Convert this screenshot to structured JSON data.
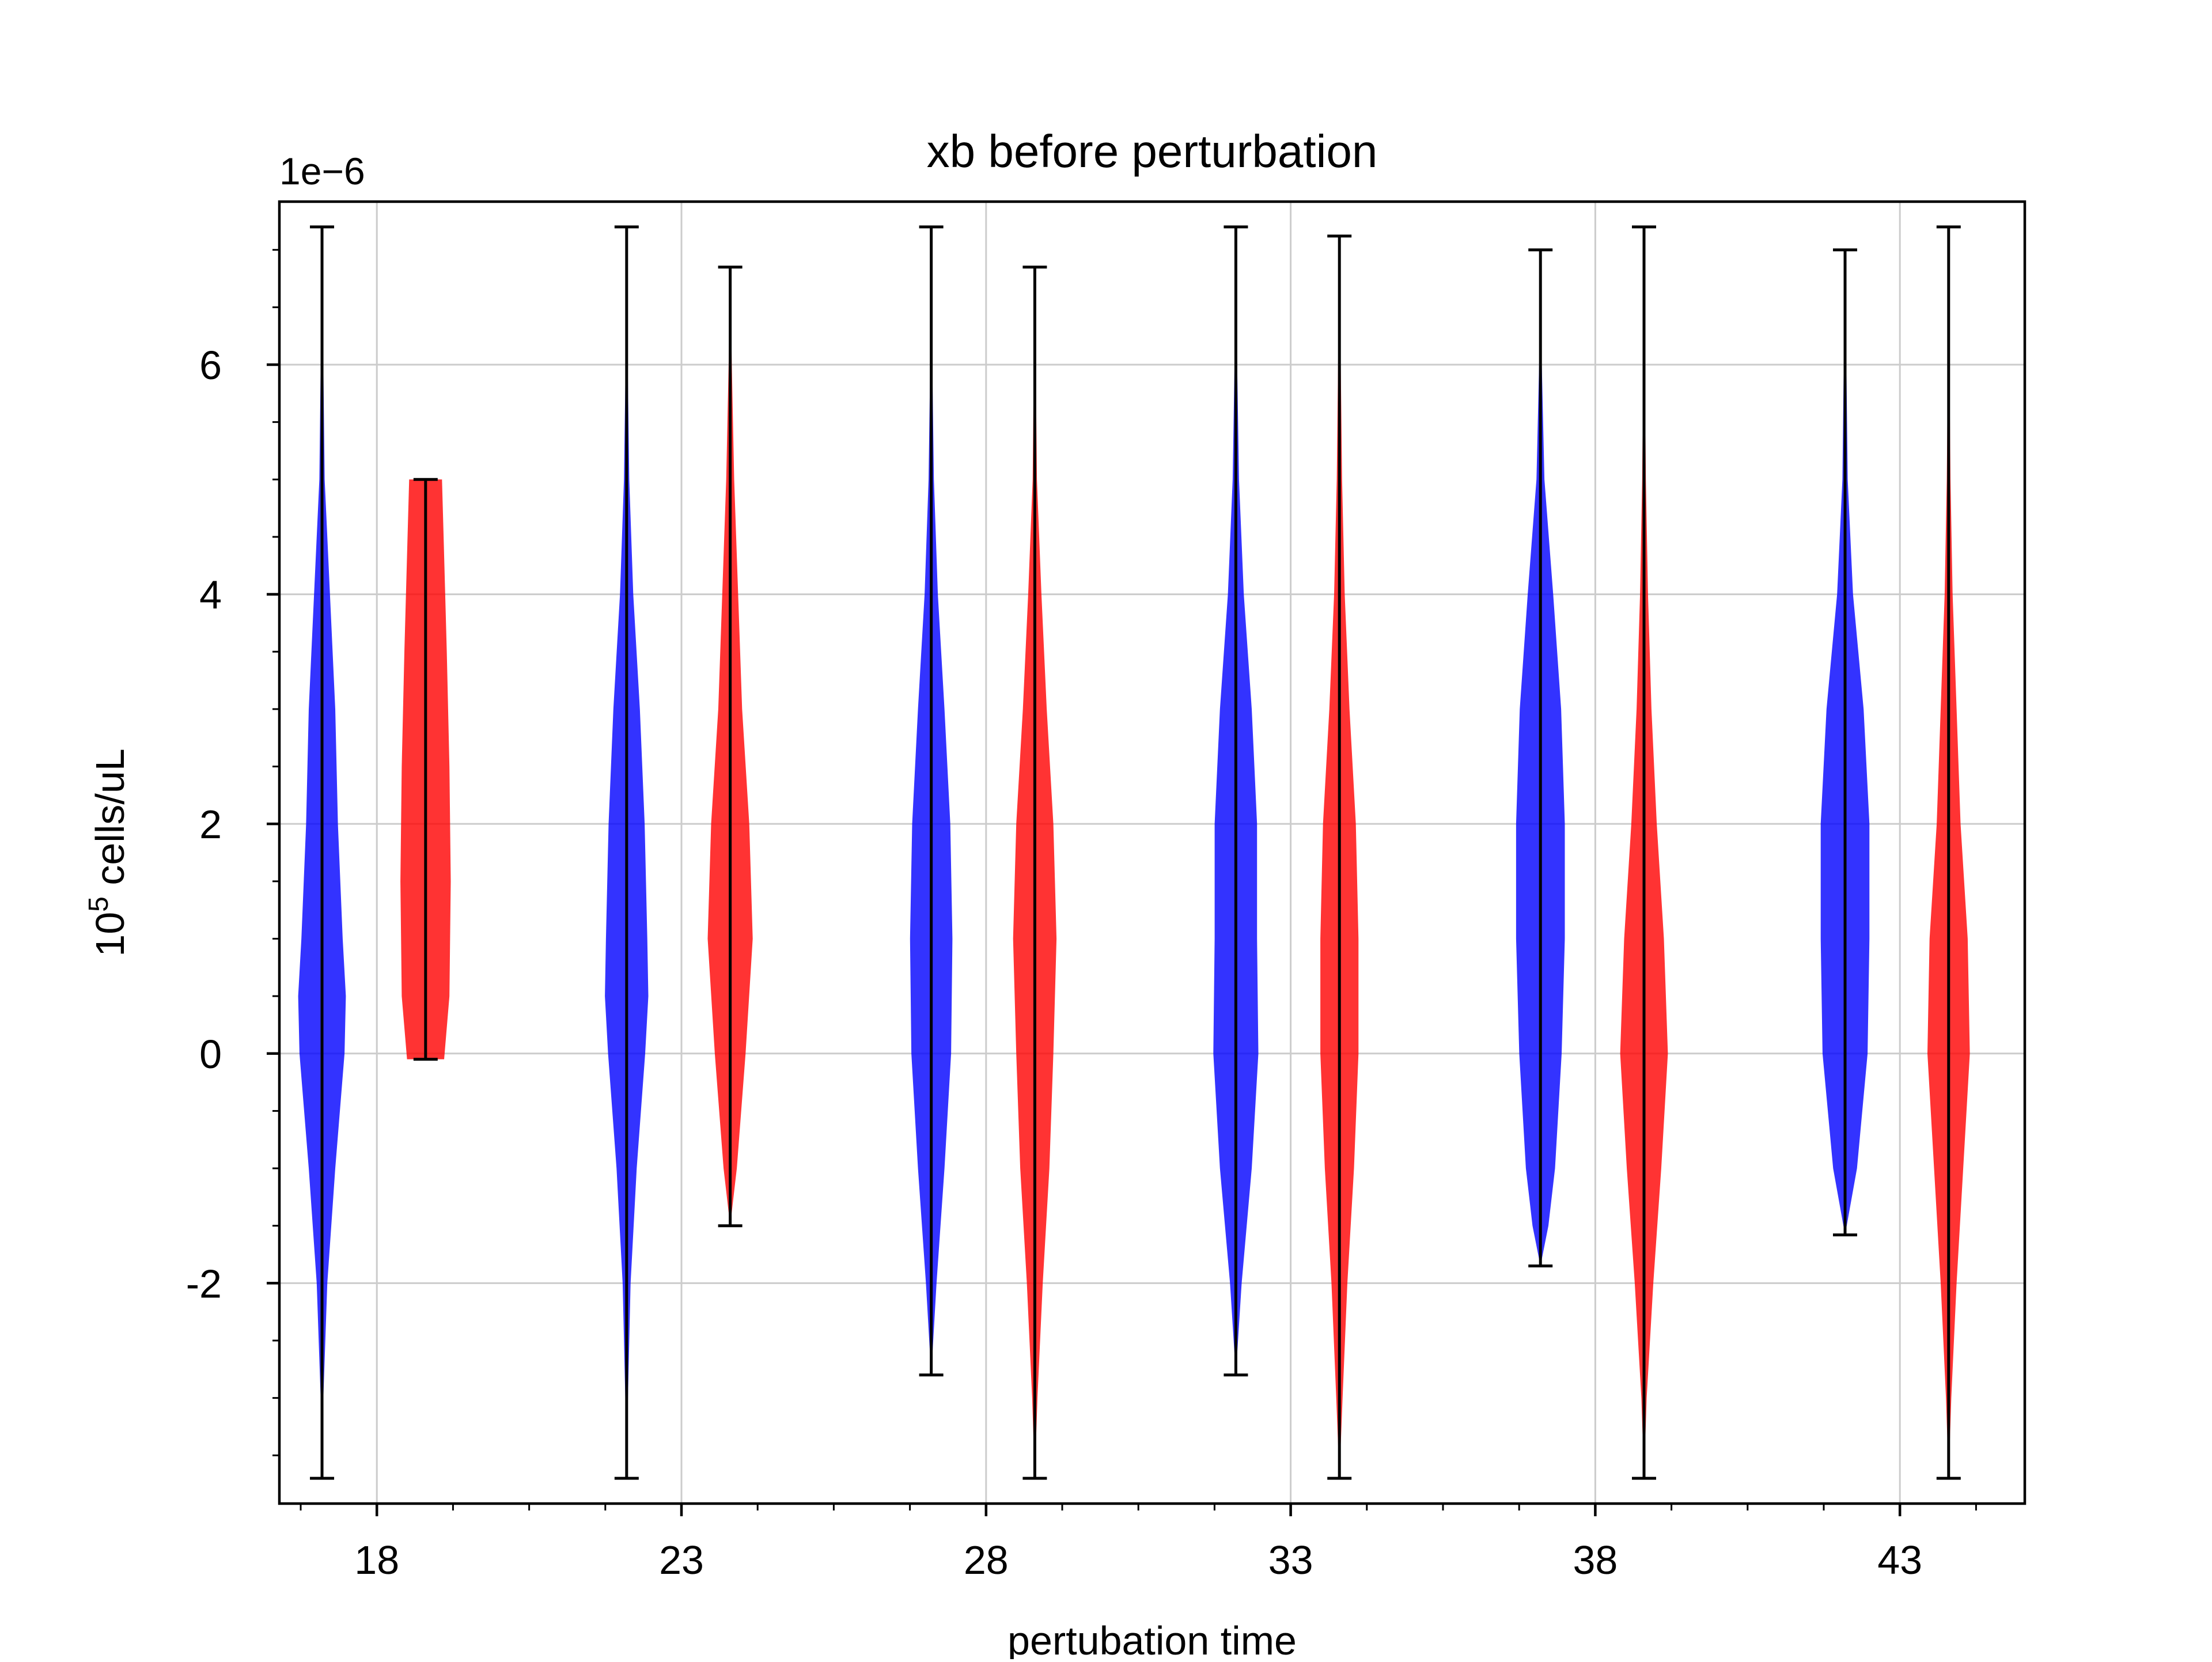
{
  "chart_data": {
    "type": "violin",
    "title": "xb before perturbation",
    "xlabel": "pertubation time",
    "ylabel_base": "10",
    "ylabel_exp": "5",
    "ylabel_rest": " cells/uL",
    "y_offset_text": "1e−6",
    "xlim": [
      16.4,
      45.05
    ],
    "ylim": [
      -3.92,
      7.42
    ],
    "y_ticks": [
      -2,
      0,
      2,
      4,
      6
    ],
    "y_tick_labels": [
      "-2",
      "0",
      "2",
      "4",
      "6"
    ],
    "y_minor_step": 0.5,
    "x_ticks": [
      18,
      23,
      28,
      33,
      38,
      43
    ],
    "x_tick_labels": [
      "18",
      "23",
      "28",
      "33",
      "38",
      "43"
    ],
    "x_minor_step": 1.25,
    "grid": true,
    "legend": "none",
    "colors": {
      "blue": "#0000ff",
      "red": "#ff0000",
      "bar": "#000000"
    },
    "series": [
      {
        "color": "blue",
        "x": [
          17.1,
          22.1,
          27.1,
          32.1,
          37.1,
          42.1
        ],
        "min": [
          -3.7,
          -3.7,
          -2.8,
          -2.8,
          -1.85,
          -1.58
        ],
        "max": [
          7.2,
          7.2,
          7.2,
          7.2,
          7.0,
          7.0
        ],
        "density": [
          [
            [
              -3.7,
              0
            ],
            [
              -3.0,
              0.05
            ],
            [
              -2.0,
              0.2
            ],
            [
              -1.0,
              0.5
            ],
            [
              0.0,
              0.85
            ],
            [
              0.5,
              0.9
            ],
            [
              1.0,
              0.78
            ],
            [
              2.0,
              0.6
            ],
            [
              3.0,
              0.5
            ],
            [
              4.0,
              0.3
            ],
            [
              5.0,
              0.1
            ],
            [
              6.0,
              0.05
            ],
            [
              7.2,
              0
            ]
          ],
          [
            [
              -3.7,
              0
            ],
            [
              -3.0,
              0.05
            ],
            [
              -2.0,
              0.15
            ],
            [
              -1.0,
              0.38
            ],
            [
              0.0,
              0.7
            ],
            [
              0.5,
              0.82
            ],
            [
              1.0,
              0.78
            ],
            [
              2.0,
              0.68
            ],
            [
              3.0,
              0.5
            ],
            [
              4.0,
              0.25
            ],
            [
              5.0,
              0.1
            ],
            [
              6.0,
              0.04
            ],
            [
              7.2,
              0
            ]
          ],
          [
            [
              -2.8,
              0
            ],
            [
              -2.0,
              0.2
            ],
            [
              -1.0,
              0.5
            ],
            [
              0.0,
              0.75
            ],
            [
              1.0,
              0.8
            ],
            [
              2.0,
              0.72
            ],
            [
              3.0,
              0.5
            ],
            [
              4.0,
              0.25
            ],
            [
              5.0,
              0.1
            ],
            [
              6.0,
              0.04
            ],
            [
              7.2,
              0
            ]
          ],
          [
            [
              -2.8,
              0
            ],
            [
              -2.0,
              0.22
            ],
            [
              -1.0,
              0.6
            ],
            [
              0.0,
              0.85
            ],
            [
              1.0,
              0.8
            ],
            [
              2.0,
              0.8
            ],
            [
              3.0,
              0.6
            ],
            [
              4.0,
              0.3
            ],
            [
              5.0,
              0.12
            ],
            [
              6.0,
              0.05
            ],
            [
              7.2,
              0
            ]
          ],
          [
            [
              -1.85,
              0
            ],
            [
              -1.5,
              0.3
            ],
            [
              -1.0,
              0.55
            ],
            [
              0.0,
              0.8
            ],
            [
              1.0,
              0.92
            ],
            [
              2.0,
              0.92
            ],
            [
              3.0,
              0.78
            ],
            [
              4.0,
              0.48
            ],
            [
              5.0,
              0.15
            ],
            [
              6.0,
              0.05
            ],
            [
              7.0,
              0
            ]
          ],
          [
            [
              -1.58,
              0
            ],
            [
              -1.0,
              0.45
            ],
            [
              0.0,
              0.85
            ],
            [
              1.0,
              0.92
            ],
            [
              2.0,
              0.92
            ],
            [
              3.0,
              0.7
            ],
            [
              4.0,
              0.3
            ],
            [
              5.0,
              0.1
            ],
            [
              6.0,
              0.05
            ],
            [
              7.0,
              0
            ]
          ]
        ]
      },
      {
        "color": "red",
        "x": [
          18.8,
          23.8,
          28.8,
          33.8,
          38.8,
          43.8
        ],
        "min": [
          -0.05,
          -1.5,
          -3.7,
          -3.7,
          -3.7,
          -3.7
        ],
        "max": [
          5.0,
          6.85,
          6.85,
          7.12,
          7.2,
          7.2
        ],
        "density": [
          [
            [
              -0.05,
              0.7
            ],
            [
              0.5,
              0.9
            ],
            [
              1.5,
              0.95
            ],
            [
              2.5,
              0.9
            ],
            [
              3.5,
              0.8
            ],
            [
              4.5,
              0.68
            ],
            [
              5.0,
              0.62
            ]
          ],
          [
            [
              -1.5,
              0
            ],
            [
              -1.0,
              0.25
            ],
            [
              0.0,
              0.58
            ],
            [
              1.0,
              0.85
            ],
            [
              2.0,
              0.72
            ],
            [
              3.0,
              0.45
            ],
            [
              4.0,
              0.3
            ],
            [
              5.0,
              0.15
            ],
            [
              6.0,
              0.06
            ],
            [
              6.85,
              0
            ]
          ],
          [
            [
              -3.7,
              0
            ],
            [
              -3.0,
              0.1
            ],
            [
              -2.0,
              0.3
            ],
            [
              -1.0,
              0.55
            ],
            [
              0.0,
              0.7
            ],
            [
              1.0,
              0.82
            ],
            [
              2.0,
              0.7
            ],
            [
              3.0,
              0.45
            ],
            [
              4.0,
              0.25
            ],
            [
              5.0,
              0.08
            ],
            [
              6.85,
              0
            ]
          ],
          [
            [
              -3.7,
              0
            ],
            [
              -3.0,
              0.12
            ],
            [
              -2.0,
              0.3
            ],
            [
              -1.0,
              0.55
            ],
            [
              0.0,
              0.72
            ],
            [
              1.0,
              0.72
            ],
            [
              2.0,
              0.62
            ],
            [
              3.0,
              0.38
            ],
            [
              4.0,
              0.2
            ],
            [
              5.0,
              0.1
            ],
            [
              6.0,
              0.05
            ],
            [
              7.12,
              0
            ]
          ],
          [
            [
              -3.7,
              0
            ],
            [
              -3.0,
              0.1
            ],
            [
              -2.0,
              0.35
            ],
            [
              -1.0,
              0.65
            ],
            [
              0.0,
              0.9
            ],
            [
              1.0,
              0.75
            ],
            [
              2.0,
              0.48
            ],
            [
              3.0,
              0.28
            ],
            [
              4.0,
              0.15
            ],
            [
              5.0,
              0.07
            ],
            [
              6.0,
              0.03
            ],
            [
              7.2,
              0
            ]
          ],
          [
            [
              -3.7,
              0
            ],
            [
              -3.0,
              0.1
            ],
            [
              -2.0,
              0.3
            ],
            [
              -1.0,
              0.55
            ],
            [
              0.0,
              0.8
            ],
            [
              1.0,
              0.72
            ],
            [
              2.0,
              0.45
            ],
            [
              3.0,
              0.3
            ],
            [
              4.0,
              0.15
            ],
            [
              5.0,
              0.07
            ],
            [
              6.0,
              0.03
            ],
            [
              7.2,
              0
            ]
          ]
        ]
      }
    ]
  }
}
